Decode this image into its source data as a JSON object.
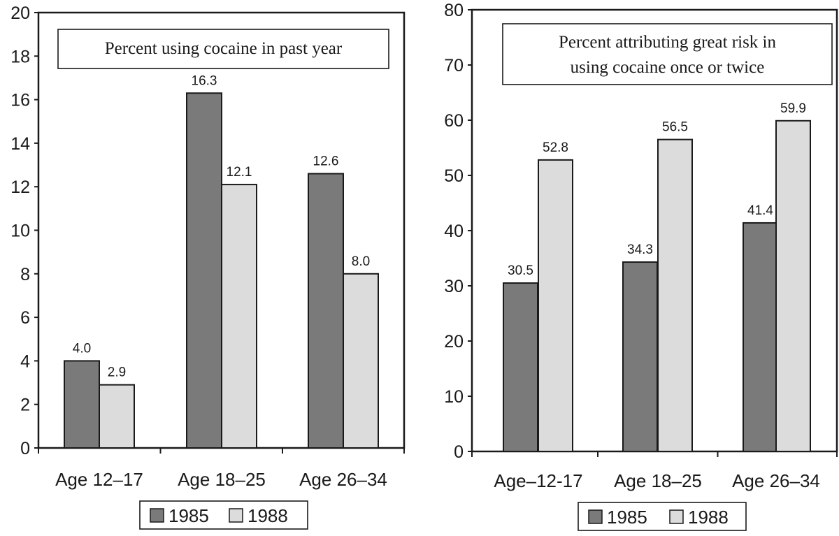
{
  "colors": {
    "s1985": "#7a7a7a",
    "s1988": "#dcdcdc",
    "stroke": "#1a1a1a"
  },
  "chart_data": [
    {
      "type": "bar",
      "title": [
        "Percent using cocaine in past year"
      ],
      "categories": [
        "Age 12–17",
        "Age 18–25",
        "Age 26–34"
      ],
      "series": [
        {
          "name": "1985",
          "values": [
            4.0,
            16.3,
            12.6
          ],
          "labels": [
            "4.0",
            "16.3",
            "12.6"
          ]
        },
        {
          "name": "1988",
          "values": [
            2.9,
            12.1,
            8.0
          ],
          "labels": [
            "2.9",
            "12.1",
            "8.0"
          ]
        }
      ],
      "ylim": [
        0,
        20
      ],
      "yticks": [
        0,
        2,
        4,
        6,
        8,
        10,
        12,
        14,
        16,
        18,
        20
      ],
      "xlabel": "",
      "ylabel": "",
      "legend": "bottom",
      "grid": false
    },
    {
      "type": "bar",
      "title": [
        "Percent attributing great risk in",
        "using cocaine once or twice"
      ],
      "categories": [
        "Age–12-17",
        "Age 18–25",
        "Age 26–34"
      ],
      "series": [
        {
          "name": "1985",
          "values": [
            30.5,
            34.3,
            41.4
          ],
          "labels": [
            "30.5",
            "34.3",
            "41.4"
          ]
        },
        {
          "name": "1988",
          "values": [
            52.8,
            56.5,
            59.9
          ],
          "labels": [
            "52.8",
            "56.5",
            "59.9"
          ]
        }
      ],
      "ylim": [
        0,
        80
      ],
      "yticks": [
        0,
        10,
        20,
        30,
        40,
        50,
        60,
        70,
        80
      ],
      "xlabel": "",
      "ylabel": "",
      "legend": "bottom",
      "grid": false
    }
  ]
}
